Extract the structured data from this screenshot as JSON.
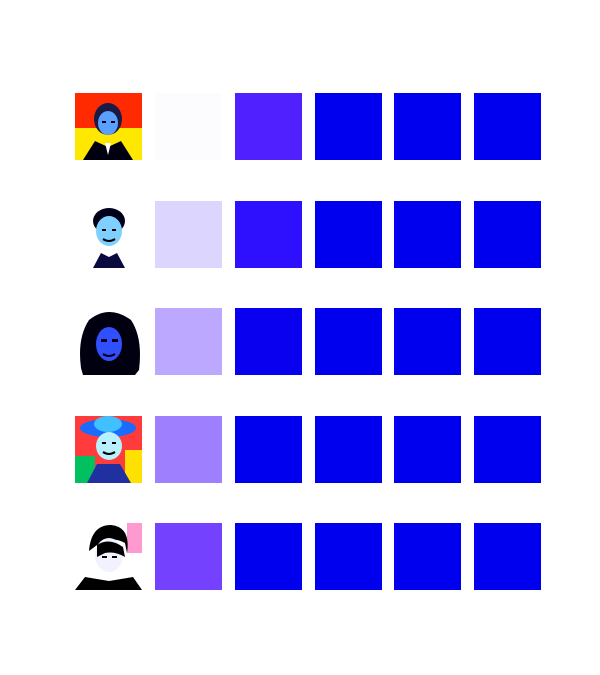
{
  "rows": [
    {
      "portrait_icon": "portrait-man-suit-icon",
      "portrait_bg": "#ff2a00",
      "portrait_bg2": "#ffe800",
      "swatches": [
        "#fcfcff",
        "#5020ff",
        "#0000ee",
        "#0000ee",
        "#0000ee"
      ]
    },
    {
      "portrait_icon": "portrait-young-man-icon",
      "portrait_bg": "#ffffff",
      "portrait_bg2": "#ffffff",
      "swatches": [
        "#dcd6ff",
        "#2e10ff",
        "#0000ee",
        "#0000ee",
        "#0000ee"
      ]
    },
    {
      "portrait_icon": "portrait-curly-hair-woman-icon",
      "portrait_bg": "#ffffff",
      "portrait_bg2": "#ffffff",
      "swatches": [
        "#bca9ff",
        "#0a00f0",
        "#0000ee",
        "#0000ee",
        "#0000ee"
      ]
    },
    {
      "portrait_icon": "portrait-woman-hat-icon",
      "portrait_bg": "#ff3b3b",
      "portrait_bg2": "#00c060",
      "swatches": [
        "#9e80ff",
        "#0000ee",
        "#0000ee",
        "#0000ee",
        "#0000ee"
      ]
    },
    {
      "portrait_icon": "portrait-man-dark-hair-icon",
      "portrait_bg": "#ffffff",
      "portrait_bg2": "#ff9ad0",
      "swatches": [
        "#7442ff",
        "#0000ee",
        "#0000ee",
        "#0000ee",
        "#0000ee"
      ]
    }
  ]
}
